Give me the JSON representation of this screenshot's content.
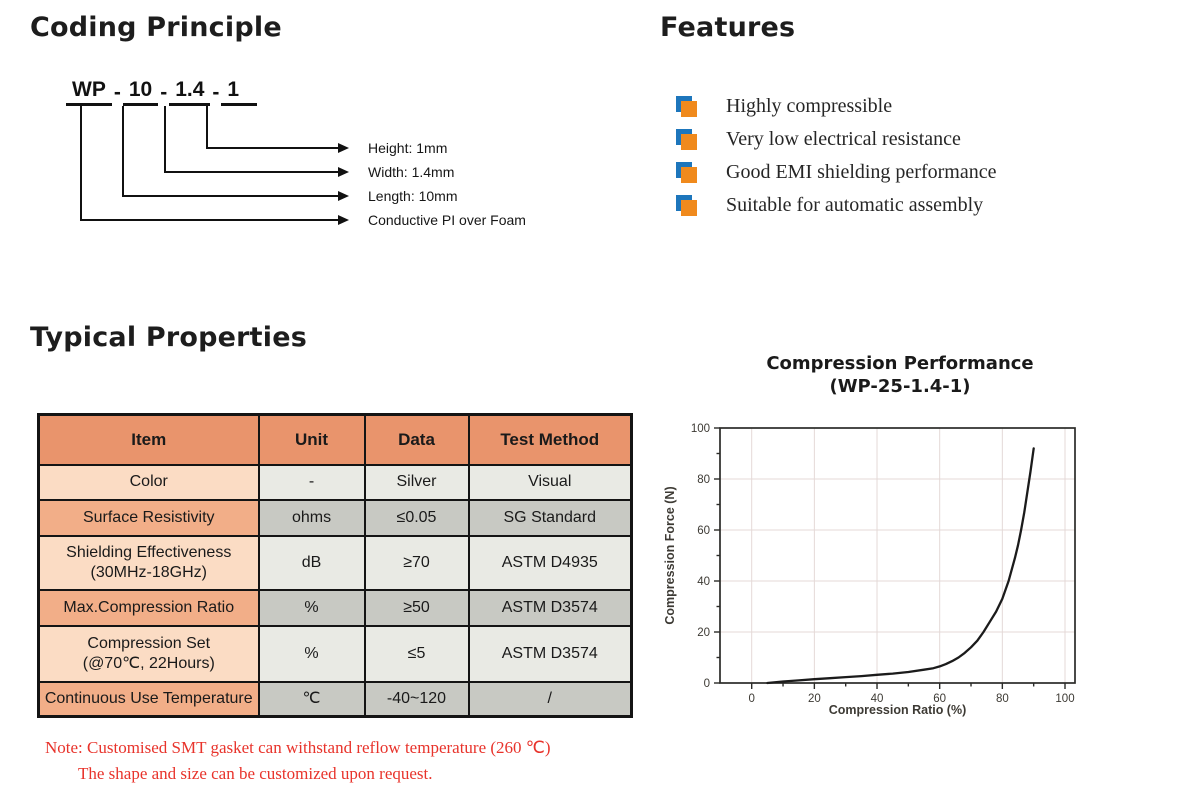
{
  "coding_principle": {
    "title": "Coding Principle",
    "code_segments": [
      "WP",
      "10",
      "1.4",
      "1"
    ],
    "separator": "-",
    "labels": {
      "height": "Height: 1mm",
      "width": "Width: 1.4mm",
      "length": "Length: 10mm",
      "type": "Conductive PI over Foam"
    }
  },
  "features": {
    "title": "Features",
    "items": [
      "Highly compressible",
      "Very low electrical resistance",
      "Good EMI shielding performance",
      "Suitable for automatic assembly"
    ],
    "bullet_front_color": "#F08A1D",
    "bullet_back_color": "#1D76BC"
  },
  "typical_properties": {
    "title": "Typical Properties",
    "table": {
      "headers": [
        "Item",
        "Unit",
        "Data",
        "Test Method"
      ],
      "rows": [
        [
          "Color",
          "-",
          "Silver",
          "Visual"
        ],
        [
          "Surface Resistivity",
          "ohms",
          "≤0.05",
          "SG Standard"
        ],
        [
          "Shielding Effectiveness\n(30MHz-18GHz)",
          "dB",
          "≥70",
          "ASTM D4935"
        ],
        [
          "Max.Compression Ratio",
          "%",
          "≥50",
          "ASTM D3574"
        ],
        [
          "Compression Set\n(@70℃, 22Hours)",
          "%",
          "≤5",
          "ASTM D3574"
        ],
        [
          "Continuous Use Temperature",
          "℃",
          "-40~120",
          "/"
        ]
      ],
      "header_bg": "#E9946C",
      "row_item_light_bg": "#FBDCC4",
      "row_item_dark_bg": "#F2AE88",
      "row_val_light_bg": "#E9EAE4",
      "row_val_dark_bg": "#C8C9C3"
    },
    "note_line1": "Note: Customised SMT gasket can withstand reflow temperature (260 ℃)",
    "note_line2": "The shape and size can be customized upon request.",
    "note_color": "#E8332B"
  },
  "chart_data": {
    "type": "line",
    "title": "Compression Performance",
    "subtitle": "(WP-25-1.4-1)",
    "xlabel": "Compression Ratio (%)",
    "ylabel": "Compression Force (N)",
    "xlim": [
      0,
      100
    ],
    "ylim": [
      0,
      100
    ],
    "x_ticks": [
      0,
      20,
      40,
      60,
      80,
      100
    ],
    "y_ticks": [
      0,
      20,
      40,
      60,
      80,
      100
    ],
    "minor_tick_step": 10,
    "grid": true,
    "grid_color": "#e4d9d7",
    "line_color": "#1b1b1b",
    "series": [
      {
        "name": "WP-25-1.4-1",
        "points": [
          [
            5,
            0
          ],
          [
            10,
            0.6
          ],
          [
            15,
            1.0
          ],
          [
            20,
            1.5
          ],
          [
            25,
            1.9
          ],
          [
            30,
            2.3
          ],
          [
            35,
            2.7
          ],
          [
            40,
            3.2
          ],
          [
            45,
            3.7
          ],
          [
            50,
            4.3
          ],
          [
            55,
            5.2
          ],
          [
            58,
            5.8
          ],
          [
            60,
            6.5
          ],
          [
            62,
            7.4
          ],
          [
            64,
            8.6
          ],
          [
            66,
            10
          ],
          [
            68,
            11.8
          ],
          [
            70,
            14
          ],
          [
            72,
            16.6
          ],
          [
            74,
            20
          ],
          [
            76,
            24
          ],
          [
            78,
            28
          ],
          [
            80,
            33
          ],
          [
            82,
            40
          ],
          [
            84,
            49
          ],
          [
            85,
            54
          ],
          [
            86,
            60
          ],
          [
            87,
            67
          ],
          [
            88,
            75
          ],
          [
            89,
            83
          ],
          [
            90,
            92
          ]
        ]
      }
    ]
  }
}
